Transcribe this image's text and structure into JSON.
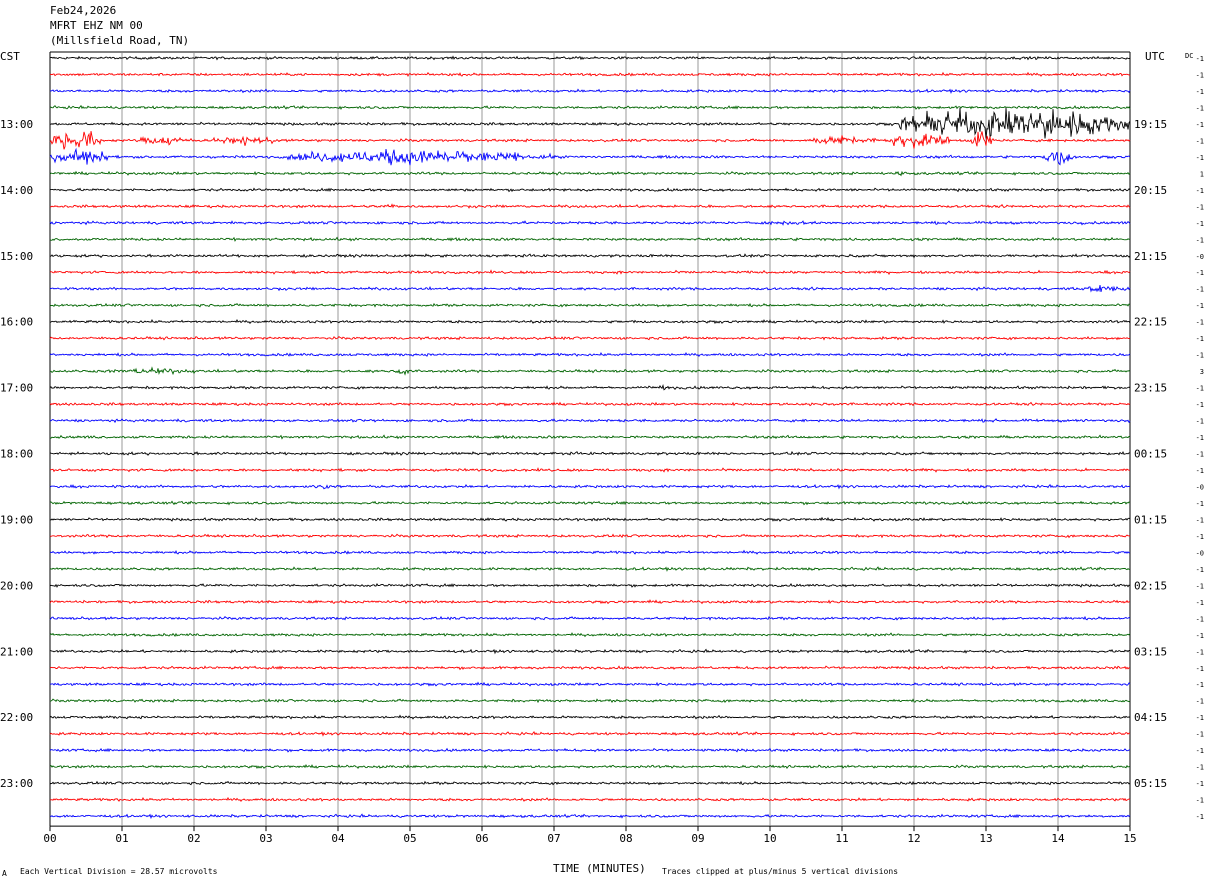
{
  "header": {
    "date": "Feb24,2026",
    "station": "MFRT EHZ NM 00",
    "location": "(Millsfield Road, TN)"
  },
  "axes": {
    "left_zone": "CST",
    "right_zone": "UTC",
    "dc_label": "DC",
    "xlabel": "TIME (MINUTES)"
  },
  "footer": {
    "left_mark": "A",
    "scale": "Each Vertical Division =   28.57 microvolts",
    "clip_note": "Traces clipped at plus/minus 5 vertical divisions"
  },
  "chart_data": {
    "type": "line",
    "title": "MFRT EHZ NM 00 (Millsfield Road, TN) Feb24,2026",
    "x_range_minutes": [
      0,
      15
    ],
    "x_ticks": [
      "00",
      "01",
      "02",
      "03",
      "04",
      "05",
      "06",
      "07",
      "08",
      "09",
      "10",
      "11",
      "12",
      "13",
      "14",
      "15"
    ],
    "rows_per_hour": 4,
    "minutes_per_row": 15,
    "trace_colors": [
      "#000000",
      "#ff0000",
      "#0000ff",
      "#006400"
    ],
    "grid": true,
    "left_hour_labels": [
      "",
      "13:00",
      "14:00",
      "15:00",
      "16:00",
      "17:00",
      "18:00",
      "19:00",
      "20:00",
      "21:00",
      "22:00",
      "23:00"
    ],
    "right_hour_labels": [
      "",
      "19:15",
      "20:15",
      "21:15",
      "22:15",
      "23:15",
      "00:15",
      "01:15",
      "02:15",
      "03:15",
      "04:15",
      "05:15"
    ],
    "dc_offsets": [
      "-1",
      "-1",
      "-1",
      "-1",
      "-1",
      "-1",
      "-1",
      "1",
      "-1",
      "-1",
      "-1",
      "-1",
      "-0",
      "-1",
      "-1",
      "-1",
      "-1",
      "-1",
      "-1",
      "3",
      "-1",
      "-1",
      "-1",
      "-1",
      "-1",
      "-1",
      "-0",
      "-1",
      "-1",
      "-1",
      "-0",
      "-1",
      "-1",
      "-1",
      "-1",
      "-1",
      "-1",
      "-1",
      "-1",
      "-1",
      "-1",
      "-1",
      "-1",
      "-1",
      "-1",
      "-1",
      "-1"
    ],
    "noise_level_divisions": 0.35,
    "events": [
      {
        "row": 4,
        "start_min": 11.8,
        "end_min": 15.0,
        "amplitude_div": 5,
        "note": "clipped"
      },
      {
        "row": 5,
        "start_min": 0.0,
        "end_min": 0.7,
        "amplitude_div": 4
      },
      {
        "row": 5,
        "start_min": 1.2,
        "end_min": 2.0,
        "amplitude_div": 1.5
      },
      {
        "row": 5,
        "start_min": 2.2,
        "end_min": 3.2,
        "amplitude_div": 1.3
      },
      {
        "row": 5,
        "start_min": 10.5,
        "end_min": 11.5,
        "amplitude_div": 1.5
      },
      {
        "row": 5,
        "start_min": 11.7,
        "end_min": 12.5,
        "amplitude_div": 2.5
      },
      {
        "row": 5,
        "start_min": 12.8,
        "end_min": 13.1,
        "amplitude_div": 3.5
      },
      {
        "row": 6,
        "start_min": 0.0,
        "end_min": 0.8,
        "amplitude_div": 3.5
      },
      {
        "row": 6,
        "start_min": 3.3,
        "end_min": 6.6,
        "amplitude_div": 2.5
      },
      {
        "row": 6,
        "start_min": 6.6,
        "end_min": 7.1,
        "amplitude_div": 0.8
      },
      {
        "row": 6,
        "start_min": 13.8,
        "end_min": 14.2,
        "amplitude_div": 3.5
      },
      {
        "row": 7,
        "start_min": 11.7,
        "end_min": 11.9,
        "amplitude_div": 1.0
      },
      {
        "row": 9,
        "start_min": 4.5,
        "end_min": 5.0,
        "amplitude_div": 0.8
      },
      {
        "row": 10,
        "start_min": 9.8,
        "end_min": 10.8,
        "amplitude_div": 0.6
      },
      {
        "row": 14,
        "start_min": 14.3,
        "end_min": 15.0,
        "amplitude_div": 1.2
      },
      {
        "row": 16,
        "start_min": 8.0,
        "end_min": 8.3,
        "amplitude_div": 0.6
      },
      {
        "row": 19,
        "start_min": 0.8,
        "end_min": 2.0,
        "amplitude_div": 1.0
      },
      {
        "row": 19,
        "start_min": 4.8,
        "end_min": 5.0,
        "amplitude_div": 1.2
      },
      {
        "row": 20,
        "start_min": 8.2,
        "end_min": 8.9,
        "amplitude_div": 0.7
      },
      {
        "row": 21,
        "start_min": 10.5,
        "end_min": 10.9,
        "amplitude_div": 0.6
      },
      {
        "row": 26,
        "start_min": 3.6,
        "end_min": 4.0,
        "amplitude_div": 0.6
      }
    ]
  }
}
